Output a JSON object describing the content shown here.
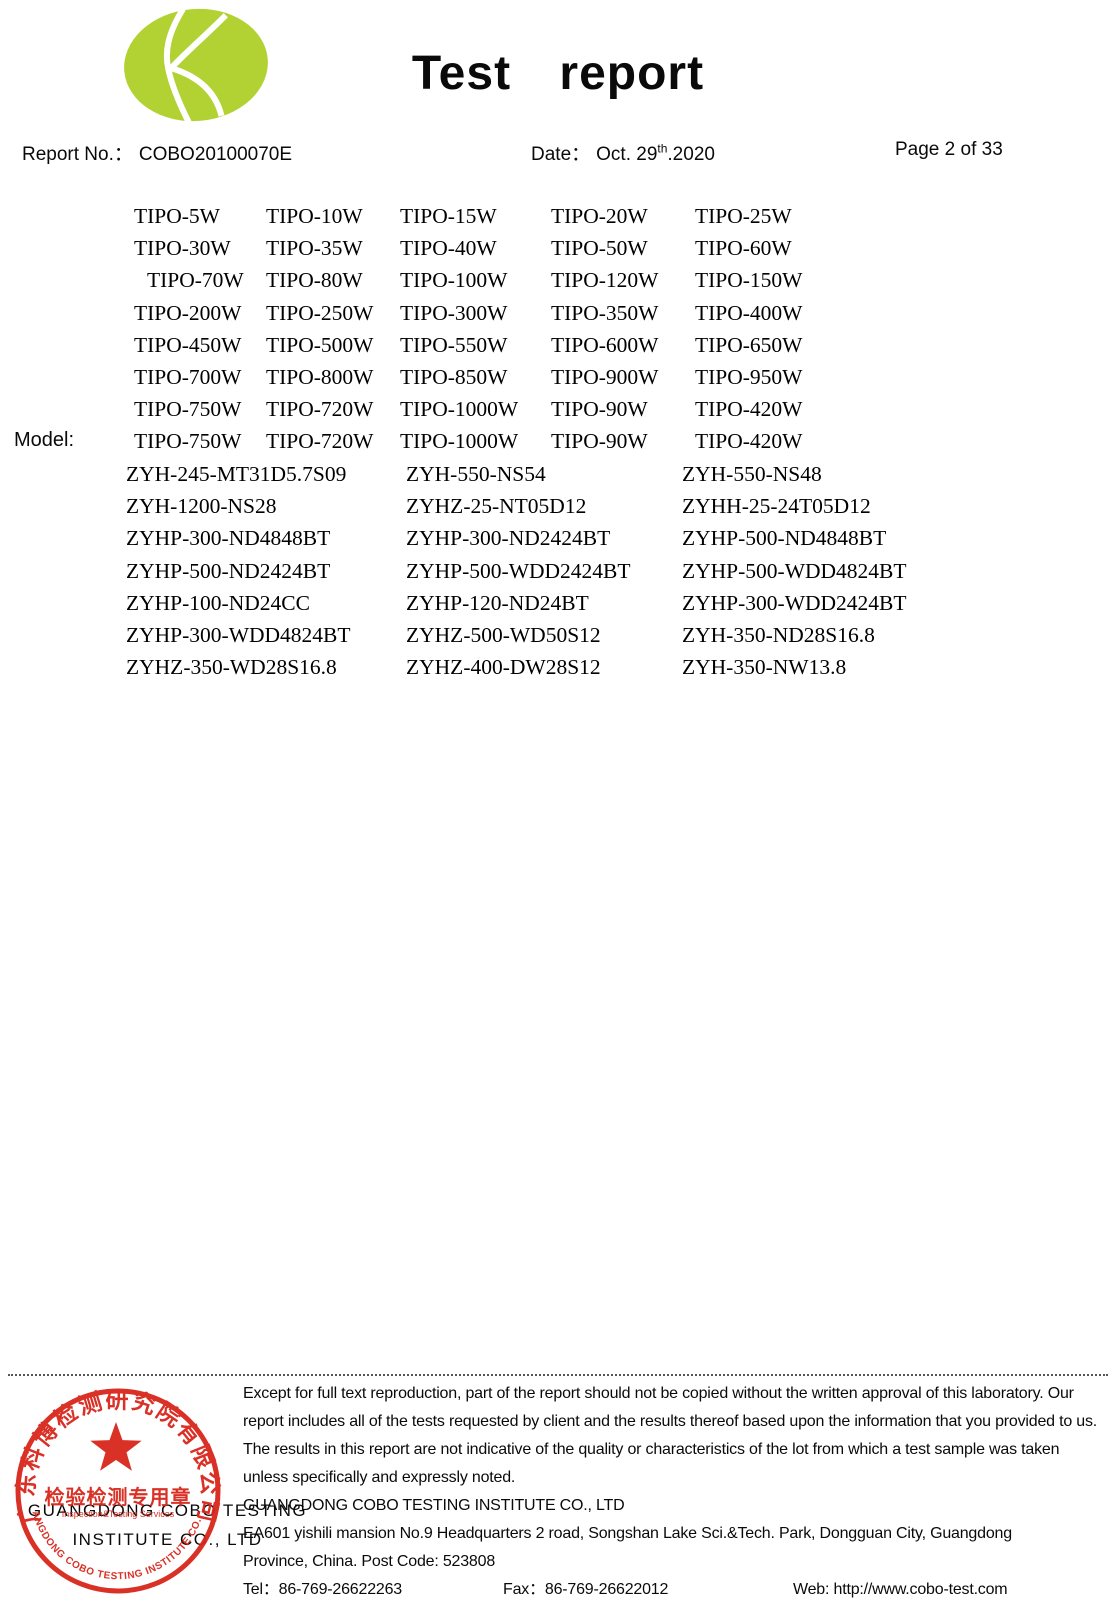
{
  "header": {
    "title": "Test report",
    "report_no_label": "Report No.：",
    "report_no_value": "COBO20100070E",
    "date_label": "Date：",
    "date_main": "Oct. 29",
    "date_sup": "th",
    "date_tail": ".2020",
    "page_label": "Page 2 of 33",
    "logo_color": "#b2d233"
  },
  "model": {
    "label": "Model:",
    "tipo_rows": [
      [
        "TIPO-5W",
        "TIPO-10W",
        "TIPO-15W",
        "TIPO-20W",
        "TIPO-25W"
      ],
      [
        "TIPO-30W",
        "TIPO-35W",
        "TIPO-40W",
        "TIPO-50W",
        "TIPO-60W"
      ],
      [
        "TIPO-70W",
        "TIPO-80W",
        "TIPO-100W",
        "TIPO-120W",
        "TIPO-150W"
      ],
      [
        "TIPO-200W",
        "TIPO-250W",
        "TIPO-300W",
        "TIPO-350W",
        "TIPO-400W"
      ],
      [
        "TIPO-450W",
        "TIPO-500W",
        "TIPO-550W",
        "TIPO-600W",
        "TIPO-650W"
      ],
      [
        "TIPO-700W",
        "TIPO-800W",
        "TIPO-850W",
        "TIPO-900W",
        "TIPO-950W"
      ],
      [
        "TIPO-750W",
        "TIPO-720W",
        "TIPO-1000W",
        "TIPO-90W",
        "TIPO-420W"
      ],
      [
        "TIPO-750W",
        "TIPO-720W",
        "TIPO-1000W",
        "TIPO-90W",
        "TIPO-420W"
      ]
    ],
    "zyh_rows": [
      [
        "ZYH-245-MT31D5.7S09",
        "ZYH-550-NS54",
        "ZYH-550-NS48"
      ],
      [
        "ZYH-1200-NS28",
        "ZYHZ-25-NT05D12",
        "ZYHH-25-24T05D12"
      ],
      [
        "ZYHP-300-ND4848BT",
        "ZYHP-300-ND2424BT",
        "ZYHP-500-ND4848BT"
      ],
      [
        "ZYHP-500-ND2424BT",
        "ZYHP-500-WDD2424BT",
        "ZYHP-500-WDD4824BT"
      ],
      [
        "ZYHP-100-ND24CC",
        "ZYHP-120-ND24BT",
        "ZYHP-300-WDD2424BT"
      ],
      [
        "ZYHP-300-WDD4824BT",
        "ZYHZ-500-WD50S12",
        "ZYH-350-ND28S16.8"
      ],
      [
        "ZYHZ-350-WD28S16.8",
        "ZYHZ-400-DW28S12",
        "ZYH-350-NW13.8"
      ]
    ]
  },
  "footer": {
    "disclaimer_lines": [
      "Except for full text reproduction, part of the report should not be copied without the written approval of this laboratory. Our",
      "report includes all of the tests requested by client and the results thereof based upon the information that you provided to us.",
      "The results in this report are not indicative of the quality or characteristics of the lot from which a test sample was taken",
      "unless specifically and expressly noted."
    ],
    "company_name": "GUANGDONG COBO TESTING INSTITUTE CO., LTD",
    "address_line1": "EA601 yishili mansion No.9 Headquarters 2 road, Songshan Lake Sci.&Tech. Park, Dongguan City, Guangdong",
    "address_line2": "Province, China. Post Code: 523808",
    "tel": "Tel：86-769-26622263",
    "fax": "Fax：86-769-26622012",
    "web": "Web: http://www.cobo-test.com"
  },
  "stamp": {
    "ring_top_text": "广东科博检测研究院有限公司",
    "center_text": "检验检测专用章",
    "sub_text": "Inspection&Testing Services",
    "ring_bottom_text": "GUANGDONG COBO TESTING INSTITUTE CO.,LTD",
    "overlay_line1": "GUANGDONG COBO TESTING",
    "overlay_line2": "INSTITUTE CO., LTD",
    "red": "#d9261c"
  }
}
